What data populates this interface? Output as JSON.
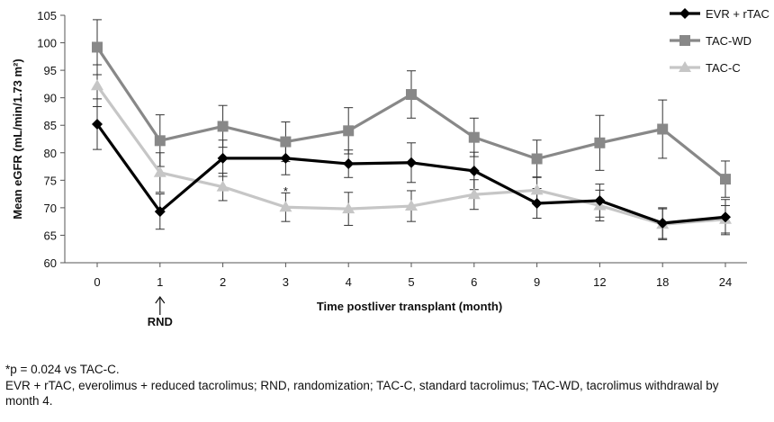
{
  "chart_data": {
    "type": "line",
    "title": "",
    "xlabel": "Time postliver transplant (month)",
    "ylabel": "Mean eGFR (mL/min/1.73 m²)",
    "ylim": [
      60,
      105
    ],
    "yticks": [
      60,
      65,
      70,
      75,
      80,
      85,
      90,
      95,
      100,
      105
    ],
    "categories": [
      "0",
      "1",
      "2",
      "3",
      "4",
      "5",
      "6",
      "9",
      "12",
      "18",
      "24"
    ],
    "legend_position": "top-right",
    "grid": false,
    "series": [
      {
        "name": "EVR + rTAC",
        "color": "#000000",
        "marker": "diamond",
        "values": [
          85.2,
          69.3,
          79.0,
          79.0,
          78.0,
          78.2,
          76.7,
          70.8,
          71.3,
          67.2,
          68.3
        ],
        "errors": [
          4.6,
          3.2,
          3.3,
          3.0,
          2.5,
          3.6,
          3.4,
          2.7,
          3.0,
          2.8,
          3.2
        ]
      },
      {
        "name": "TAC-WD",
        "color": "#888888",
        "marker": "square",
        "values": [
          99.2,
          82.2,
          84.8,
          82.0,
          84.0,
          90.6,
          82.8,
          78.9,
          81.8,
          84.3,
          75.2
        ],
        "errors": [
          5.0,
          4.7,
          3.8,
          3.6,
          4.2,
          4.3,
          3.5,
          3.4,
          5.0,
          5.3,
          3.3
        ]
      },
      {
        "name": "TAC-C",
        "color": "#c6c6c6",
        "marker": "triangle",
        "values": [
          92.2,
          76.4,
          73.8,
          70.1,
          69.8,
          70.3,
          72.4,
          73.2,
          70.4,
          67.0,
          67.9
        ],
        "errors": [
          3.8,
          3.6,
          2.5,
          2.6,
          3.0,
          2.8,
          2.7,
          2.4,
          2.8,
          2.8,
          2.5
        ]
      }
    ],
    "annotations": [
      {
        "category": "3",
        "text": "*"
      },
      {
        "category": "1",
        "text": "RND",
        "arrow": true
      }
    ]
  },
  "footnotes": {
    "line1": "*p = 0.024 vs TAC-C.",
    "line2": "EVR + rTAC, everolimus + reduced tacrolimus; RND, randomization; TAC-C, standard tacrolimus; TAC-WD, tacrolimus withdrawal by month 4."
  }
}
